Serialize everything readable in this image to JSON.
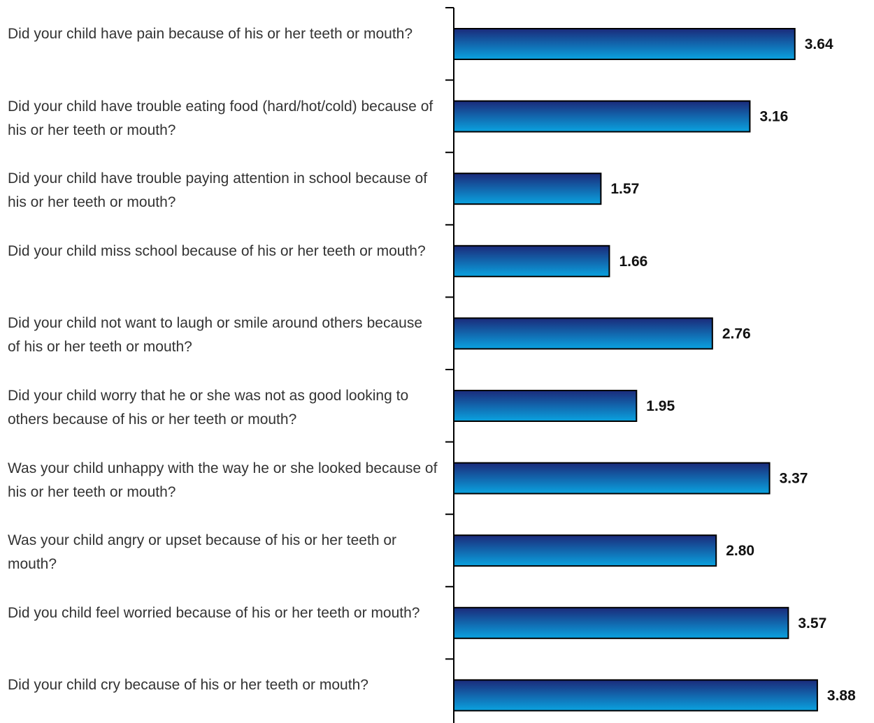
{
  "chart_data": {
    "type": "bar",
    "orientation": "horizontal",
    "categories": [
      "Did your child have pain because of his or her teeth or mouth?",
      "Did your child have trouble eating food (hard/hot/cold) because of his or her teeth or mouth?",
      "Did your child have trouble paying attention in school because of his or her teeth or mouth?",
      "Did your child miss school because of his or her teeth or mouth?",
      "Did your child not want to laugh or smile around others because of his or her teeth or mouth?",
      "Did your child worry that he or she was not as good looking to others because of his or her teeth or mouth?",
      "Was your child unhappy with the way he or she looked because of his or her teeth or mouth?",
      "Was your child angry or upset because of his or her teeth or mouth?",
      "Did you child feel worried because of his or her teeth or mouth?",
      "Did your child cry because of his or her teeth or mouth?"
    ],
    "values": [
      3.64,
      3.16,
      1.57,
      1.66,
      2.76,
      1.95,
      3.37,
      2.8,
      3.57,
      3.88
    ],
    "value_labels": [
      "3.64",
      "3.16",
      "1.57",
      "1.66",
      "2.76",
      "1.95",
      "3.37",
      "2.80",
      "3.57",
      "3.88"
    ],
    "xlim": [
      0,
      4
    ],
    "grid": false,
    "legend": "none",
    "colors": {
      "bar_top": "#1b2a7a",
      "bar_bottom": "#0aa3e0",
      "outline": "#000000",
      "axis": "#000000"
    }
  }
}
